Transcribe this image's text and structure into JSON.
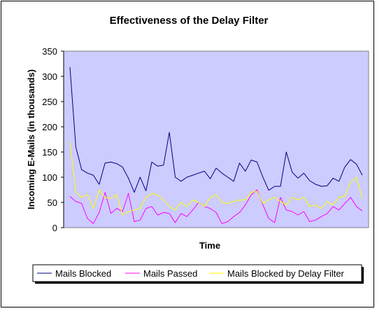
{
  "chart_data": {
    "type": "line",
    "title": "Effectiveness of the Delay Filter",
    "xlabel": "Time",
    "ylabel": "Incoming E-Mails (in thousands)",
    "ylim": [
      0,
      350
    ],
    "yticks": [
      0,
      50,
      100,
      150,
      200,
      250,
      300,
      350
    ],
    "x_tick_labels": false,
    "grid": false,
    "legend_position": "bottom",
    "plot_background": "#ccccff",
    "series": [
      {
        "name": "Mails Blocked",
        "color": "#000080",
        "values": [
          318,
          160,
          115,
          108,
          104,
          86,
          128,
          130,
          127,
          120,
          98,
          70,
          100,
          73,
          130,
          122,
          124,
          189,
          100,
          92,
          100,
          104,
          108,
          112,
          97,
          118,
          108,
          100,
          92,
          128,
          112,
          134,
          130,
          100,
          74,
          82,
          82,
          150,
          110,
          98,
          108,
          93,
          86,
          82,
          83,
          98,
          92,
          120,
          135,
          126,
          104
        ]
      },
      {
        "name": "Mails Passed",
        "color": "#ff00ff",
        "values": [
          62,
          52,
          48,
          18,
          8,
          30,
          70,
          28,
          38,
          32,
          68,
          12,
          15,
          38,
          42,
          25,
          30,
          28,
          10,
          28,
          22,
          35,
          50,
          42,
          38,
          30,
          8,
          12,
          22,
          30,
          45,
          65,
          75,
          45,
          18,
          10,
          60,
          35,
          32,
          25,
          32,
          12,
          15,
          22,
          28,
          42,
          35,
          48,
          60,
          42,
          33
        ]
      },
      {
        "name": "Mails Blocked by Delay Filter",
        "color": "#ffff00",
        "values": [
          170,
          70,
          60,
          65,
          38,
          75,
          60,
          58,
          65,
          25,
          32,
          35,
          38,
          60,
          68,
          65,
          55,
          42,
          35,
          50,
          42,
          55,
          50,
          42,
          60,
          65,
          50,
          48,
          52,
          55,
          55,
          70,
          72,
          48,
          55,
          60,
          52,
          45,
          60,
          55,
          60,
          42,
          45,
          38,
          52,
          45,
          60,
          62,
          90,
          100,
          58
        ]
      }
    ]
  }
}
